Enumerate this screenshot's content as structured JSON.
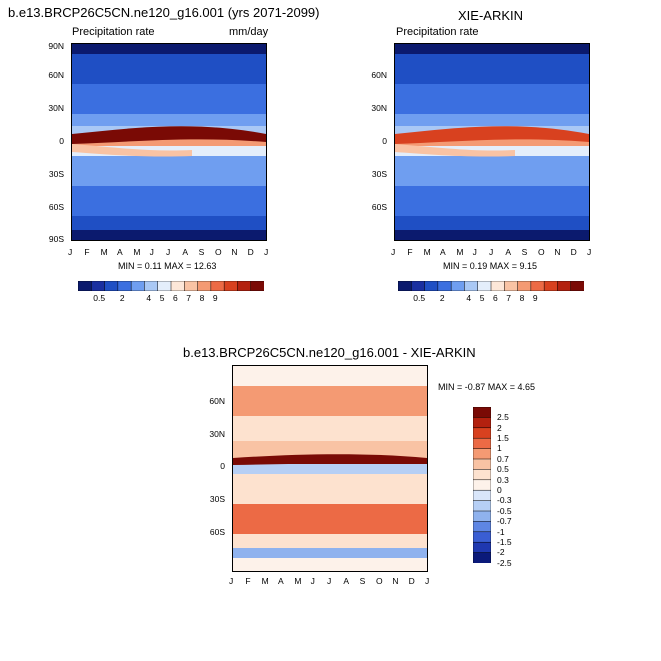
{
  "page_title": "b.e13.BRCP26C5CN.ne120_g16.001 (yrs 2071-2099)",
  "chart_data": [
    {
      "type": "heatmap",
      "title": "b.e13.BRCP26C5CN.ne120_g16.001 (yrs 2071-2099)",
      "left_label": "Precipitation rate",
      "right_label": "mm/day",
      "x_ticks": [
        "J",
        "F",
        "M",
        "A",
        "M",
        "J",
        "J",
        "A",
        "S",
        "O",
        "N",
        "D",
        "J"
      ],
      "y_ticks": [
        "90N",
        "60N",
        "30N",
        "0",
        "30S",
        "60S",
        "90S"
      ],
      "stats": "MIN =  0.11 MAX =  12.63",
      "min": 0.11,
      "max": 12.63,
      "colorbar_labels": [
        "0.5",
        "2",
        "4",
        "5",
        "6",
        "7",
        "8",
        "9"
      ]
    },
    {
      "type": "heatmap",
      "title": "XIE-ARKIN",
      "left_label": "Precipitation rate",
      "x_ticks": [
        "J",
        "F",
        "M",
        "A",
        "M",
        "J",
        "J",
        "A",
        "S",
        "O",
        "N",
        "D",
        "J"
      ],
      "y_ticks": [
        "60N",
        "30N",
        "0",
        "30S",
        "60S"
      ],
      "stats": "MIN =  0.19 MAX =  9.15",
      "min": 0.19,
      "max": 9.15,
      "colorbar_labels": [
        "0.5",
        "2",
        "4",
        "5",
        "6",
        "7",
        "8",
        "9"
      ]
    },
    {
      "type": "heatmap",
      "title": "b.e13.BRCP26C5CN.ne120_g16.001 - XIE-ARKIN",
      "x_ticks": [
        "J",
        "F",
        "M",
        "A",
        "M",
        "J",
        "J",
        "A",
        "S",
        "O",
        "N",
        "D",
        "J"
      ],
      "y_ticks": [
        "60N",
        "30N",
        "0",
        "30S",
        "60S"
      ],
      "stats": "MIN =  -0.87 MAX =  4.65",
      "min": -0.87,
      "max": 4.65,
      "colorbar_labels": [
        "2.5",
        "2",
        "1.5",
        "1",
        "0.7",
        "0.5",
        "0.3",
        "0",
        "-0.3",
        "-0.5",
        "-0.7",
        "-1",
        "-1.5",
        "-2",
        "-2.5"
      ]
    }
  ],
  "colors": {
    "seq_scale": [
      "#0b1a6e",
      "#1a2fa0",
      "#1f4fc4",
      "#3b6fe0",
      "#6f9ef0",
      "#a9c8f5",
      "#e4eefb",
      "#fde7d8",
      "#f9c3a4",
      "#f49a73",
      "#ec6a45",
      "#d8411f",
      "#b3210f",
      "#7a0a05"
    ],
    "div_scale": [
      "#7a0a05",
      "#b3210f",
      "#d8411f",
      "#ec6a45",
      "#f49a73",
      "#f9c3a4",
      "#fde2cf",
      "#fdf2ea",
      "#d9e6fa",
      "#b6cff5",
      "#8fb2ee",
      "#5e86e4",
      "#3a5ed3",
      "#1f38b0",
      "#0b1a7a"
    ]
  }
}
